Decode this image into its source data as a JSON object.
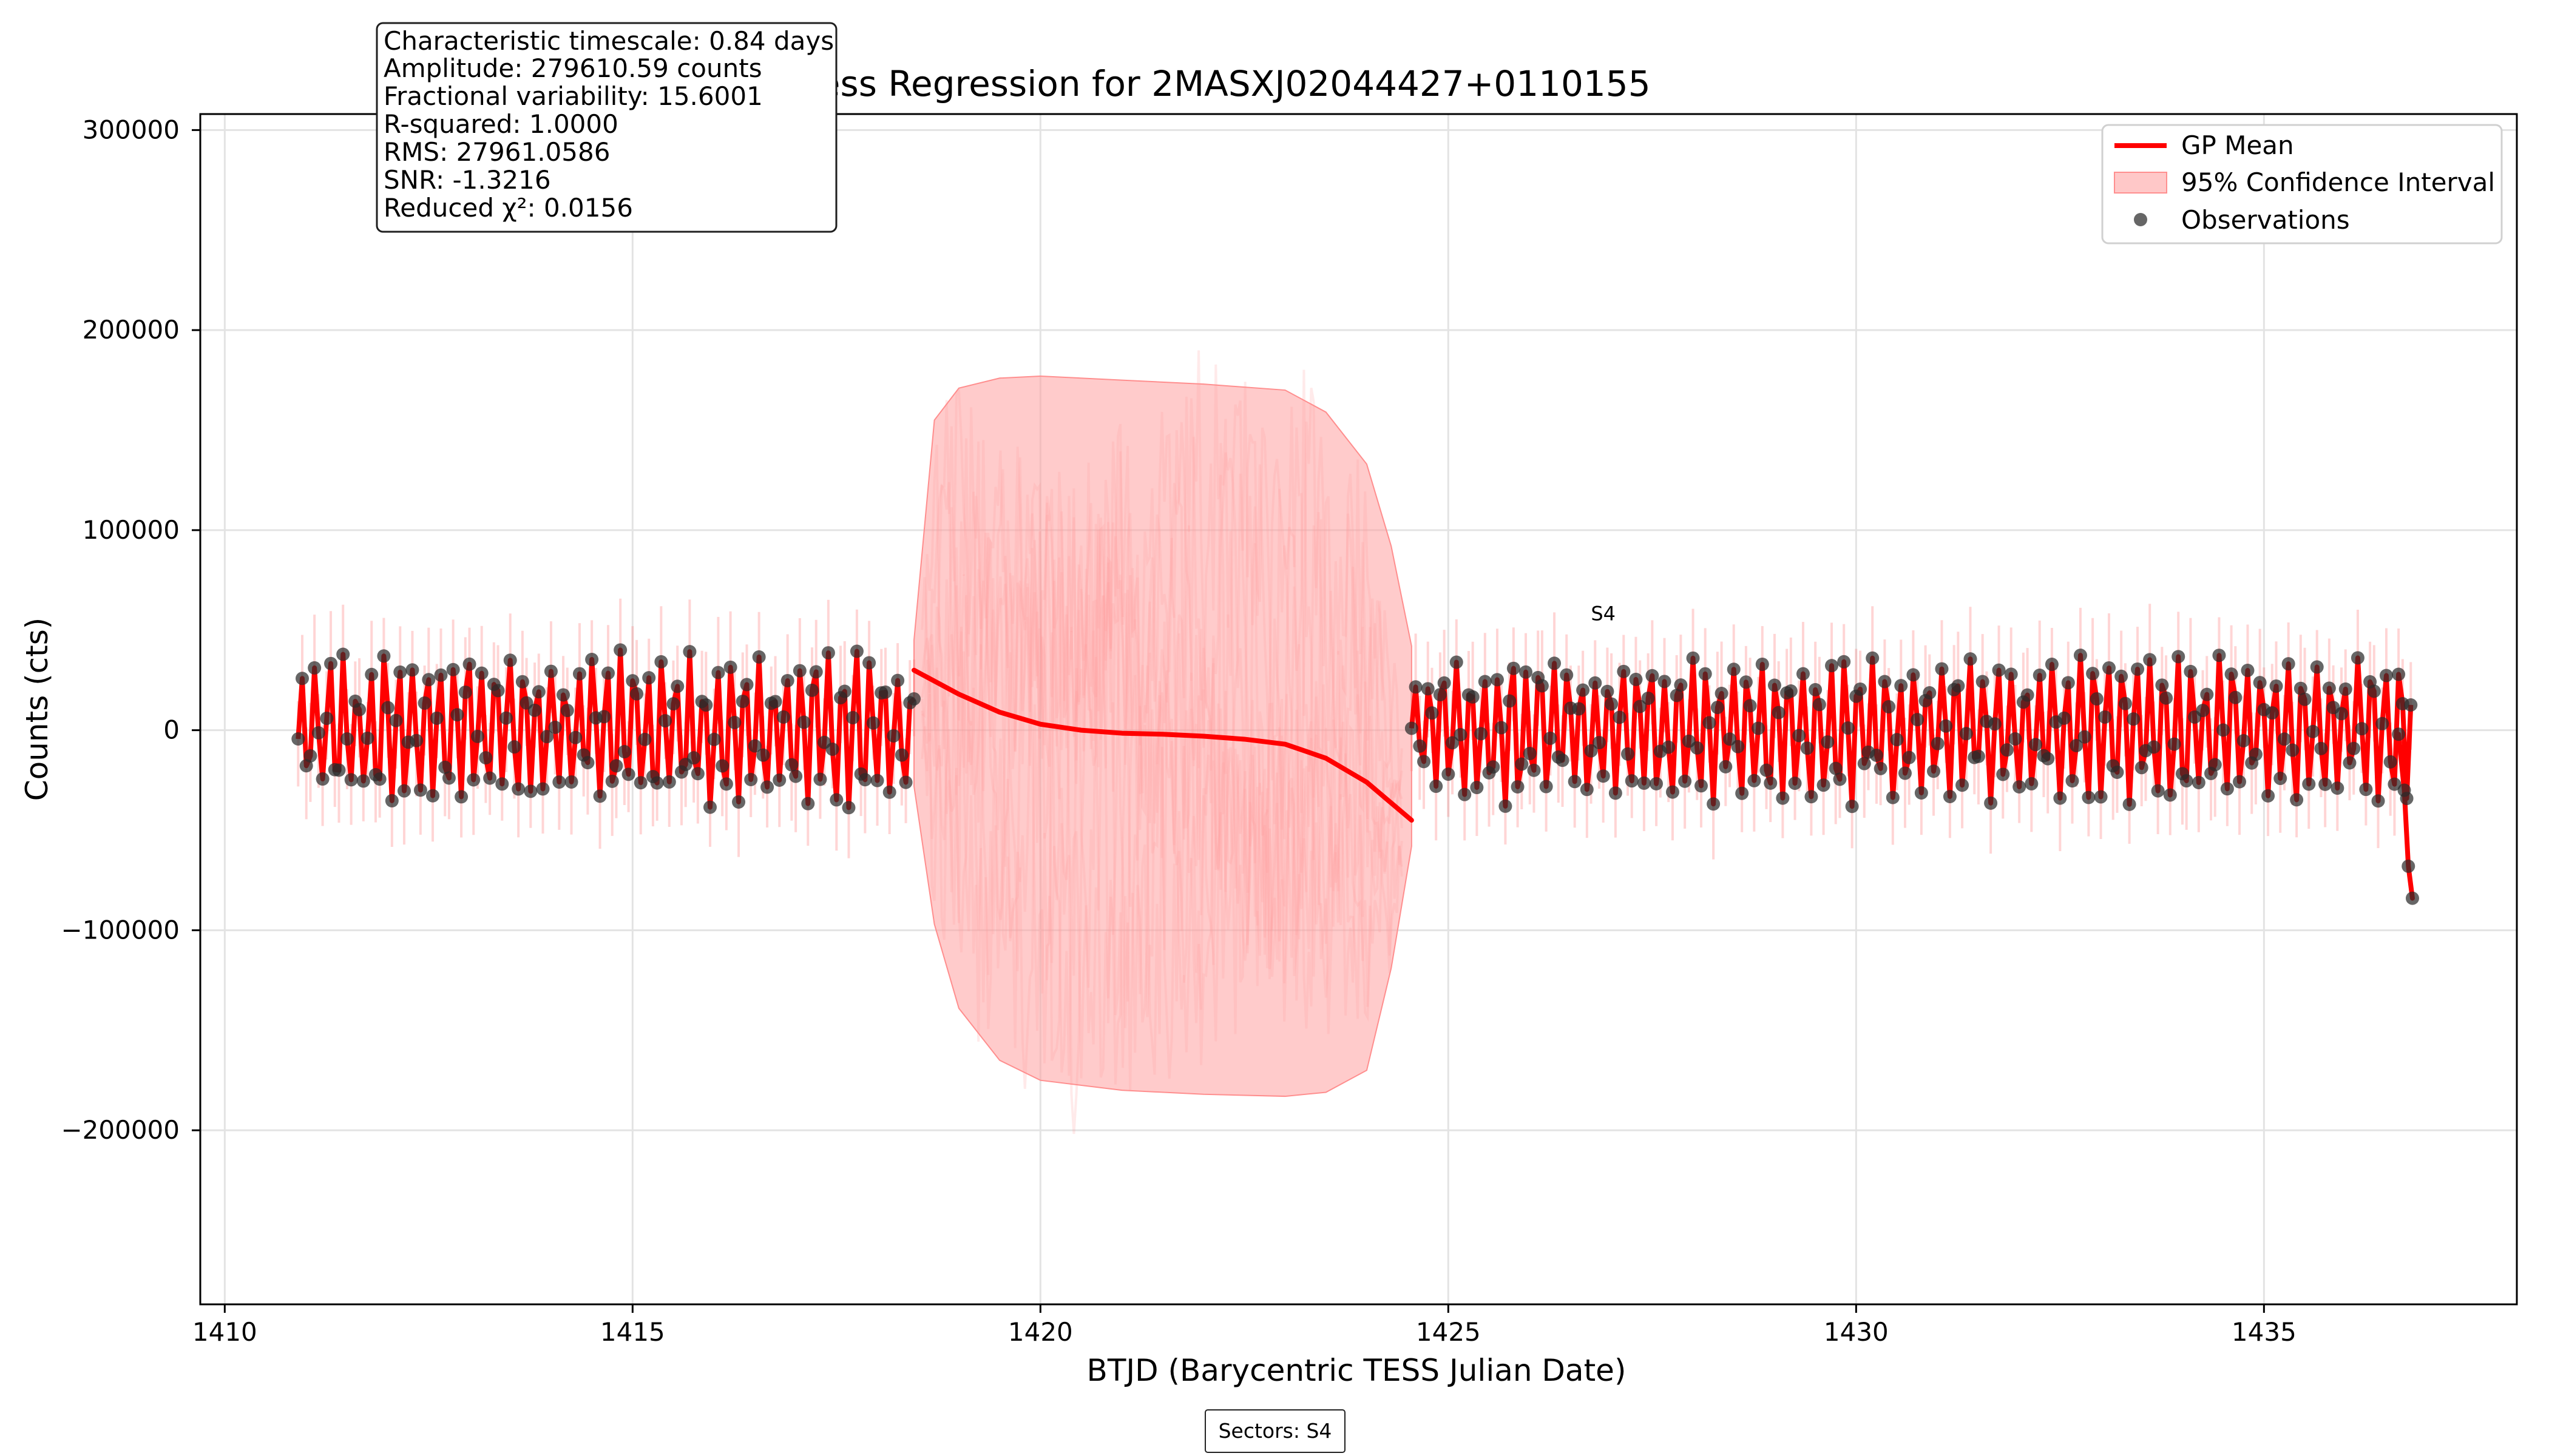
{
  "chart_data": {
    "type": "line",
    "title": "Gaussian Process Regression for 2MASXJ02044427+0110155",
    "xlabel": "BTJD (Barycentric TESS Julian Date)",
    "ylabel": "Counts (cts)",
    "xlim": [
      1409.7,
      1438.1
    ],
    "ylim": [
      -287000,
      308000
    ],
    "xticks": [
      1410,
      1415,
      1420,
      1425,
      1430,
      1435
    ],
    "xtick_labels": [
      "1410",
      "1415",
      "1420",
      "1425",
      "1430",
      "1435"
    ],
    "yticks": [
      -200000,
      -100000,
      0,
      100000,
      200000,
      300000
    ],
    "ytick_labels": [
      "−200000",
      "−100000",
      "0",
      "100000",
      "200000",
      "300000"
    ],
    "grid": true,
    "legend": {
      "placement": "top-right",
      "entries": [
        {
          "label": "GP Mean",
          "kind": "line",
          "color": "#ff0000"
        },
        {
          "label": "95% Confidence Interval",
          "kind": "band",
          "color": "#ff9b9b"
        },
        {
          "label": "Observations",
          "kind": "point",
          "color": "#1b1b1b"
        }
      ]
    },
    "stats_box": {
      "lines": [
        "Characteristic timescale: 0.84 days",
        "Amplitude: 279610.59 counts",
        "Fractional variability: 15.6001",
        "R-squared: 1.0000",
        "RMS: 27961.0586",
        "SNR: -1.3216",
        "Reduced χ²: 0.0156"
      ]
    },
    "annotations": [
      {
        "text": "S4",
        "x": 1426.9,
        "y": 55000
      }
    ],
    "footer_box": {
      "text": "Sectors: S4"
    },
    "series": [
      {
        "name": "GP Mean",
        "segments": [
          {
            "x_start": 1410.9,
            "x_end": 1418.45,
            "baseline": 0,
            "amplitude": 32000,
            "period": 0.17
          },
          {
            "x_start": 1424.55,
            "x_end": 1436.8,
            "baseline": 0,
            "amplitude": 30000,
            "period": 0.17
          }
        ],
        "gap_curve": {
          "x": [
            1418.45,
            1419.0,
            1419.5,
            1420.0,
            1420.5,
            1421.0,
            1421.5,
            1422.0,
            1422.5,
            1423.0,
            1423.5,
            1424.0,
            1424.55
          ],
          "y": [
            30000,
            18000,
            9000,
            3000,
            0,
            -1500,
            -2000,
            -3000,
            -4500,
            -7000,
            -14000,
            -26000,
            -45000
          ]
        },
        "tail_drop": {
          "x": [
            1436.65,
            1436.72,
            1436.77,
            1436.82
          ],
          "y": [
            -2000,
            -30000,
            -68000,
            -84000
          ]
        }
      },
      {
        "name": "95% Confidence Interval",
        "upper": {
          "x": [
            1418.45,
            1418.7,
            1419.0,
            1419.5,
            1420.0,
            1421.0,
            1422.0,
            1423.0,
            1423.5,
            1424.0,
            1424.3,
            1424.55
          ],
          "y": [
            45000,
            155000,
            171000,
            176000,
            177000,
            175000,
            173000,
            170000,
            159000,
            133000,
            92000,
            42000
          ]
        },
        "lower": {
          "x": [
            1418.45,
            1418.7,
            1419.0,
            1419.5,
            1420.0,
            1421.0,
            1422.0,
            1423.0,
            1423.5,
            1424.0,
            1424.3,
            1424.55
          ],
          "y": [
            -28000,
            -97000,
            -139000,
            -165000,
            -175000,
            -180000,
            -182000,
            -183000,
            -181000,
            -170000,
            -119000,
            -58000
          ]
        }
      }
    ],
    "observations": {
      "cadence_days": 0.05,
      "marker_color": "#2b2b2b",
      "segments": [
        {
          "x_start": 1410.9,
          "x_end": 1418.45
        },
        {
          "x_start": 1424.55,
          "x_end": 1436.8
        }
      ]
    },
    "background_samples": {
      "description_color": "#ff9b9b"
    }
  }
}
